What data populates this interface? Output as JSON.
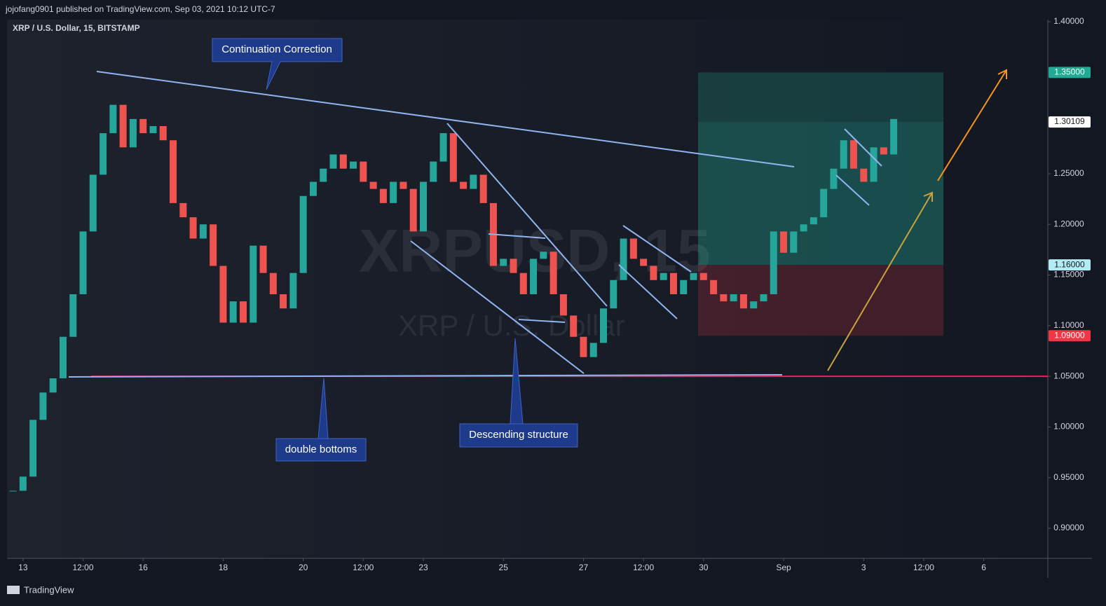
{
  "header": "jojofang0901 published on TradingView.com, Sep 03, 2021 10:12 UTC-7",
  "footer": "TradingView",
  "chart_data": {
    "type": "candlestick",
    "title": "XRP / U.S. Dollar, 15, BITSTAMP",
    "watermark": [
      "XRPUSD, 15",
      "XRP / U.S. Dollar"
    ],
    "annotations": [
      "Continuation Correction",
      "double bottoms",
      "Descending structure"
    ],
    "xlim": [
      -0.4,
      25.6
    ],
    "xticks": [
      {
        "value": 0,
        "label": "13"
      },
      {
        "value": 1.5,
        "label": "12:00"
      },
      {
        "value": 3,
        "label": "16"
      },
      {
        "value": 5,
        "label": "18"
      },
      {
        "value": 7,
        "label": "20"
      },
      {
        "value": 8.5,
        "label": "12:00"
      },
      {
        "value": 10,
        "label": "23"
      },
      {
        "value": 12,
        "label": "25"
      },
      {
        "value": 14,
        "label": "27"
      },
      {
        "value": 15.5,
        "label": "12:00"
      },
      {
        "value": 17,
        "label": "30"
      },
      {
        "value": 19,
        "label": "Sep"
      },
      {
        "value": 21,
        "label": "3"
      },
      {
        "value": 22.5,
        "label": "12:00"
      },
      {
        "value": 24,
        "label": "6"
      }
    ],
    "ylim": [
      0.8703,
      1.4021
    ],
    "yticks": [
      {
        "value": 1.4,
        "label": "1.40000"
      },
      {
        "value": 1.25,
        "label": "1.25000"
      },
      {
        "value": 1.2,
        "label": "1.20000"
      },
      {
        "value": 1.15,
        "label": "1.15000"
      },
      {
        "value": 1.1,
        "label": "1.10000"
      },
      {
        "value": 1.05,
        "label": "1.05000"
      },
      {
        "value": 1.0,
        "label": "1.00000"
      },
      {
        "value": 0.95,
        "label": "0.95000"
      },
      {
        "value": 0.9,
        "label": "0.90000"
      }
    ],
    "price_labels": [
      {
        "value": 1.35,
        "label": "1.35000",
        "color": "#22ab94",
        "text_color": "#ffffff"
      },
      {
        "value": 1.30109,
        "label": "1.30109",
        "color": "#ffffff",
        "text_color": "#131722"
      },
      {
        "value": 1.16,
        "label": "1.16000",
        "color": "#b2ebf2",
        "text_color": "#131722"
      },
      {
        "value": 1.09,
        "label": "1.09000",
        "color": "#f23645",
        "text_color": "#ffffff"
      }
    ],
    "support_line": {
      "value": 1.05,
      "color": "#e91e63"
    },
    "up_color": "#26a69a",
    "down_color": "#ef5350",
    "x": [
      -0.25,
      0,
      0.25,
      0.5,
      0.75,
      1,
      1.25,
      1.5,
      1.75,
      2,
      2.25,
      2.5,
      2.75,
      3,
      3.25,
      3.5,
      3.75,
      4,
      4.25,
      4.5,
      4.75,
      5,
      5.25,
      5.5,
      5.75,
      6,
      6.25,
      6.5,
      6.75,
      7,
      7.25,
      7.5,
      7.75,
      8,
      8.25,
      8.5,
      8.75,
      9,
      9.25,
      9.5,
      9.75,
      10,
      10.25,
      10.5,
      10.75,
      11,
      11.25,
      11.5,
      11.75,
      12,
      12.25,
      12.5,
      12.75,
      13,
      13.25,
      13.5,
      13.75,
      14,
      14.25,
      14.5,
      14.75,
      15,
      15.25,
      15.5,
      15.75,
      16,
      16.25,
      16.5,
      16.75,
      17,
      17.25,
      17.5,
      17.75,
      18,
      18.25,
      18.5,
      18.75,
      19,
      19.25,
      19.5,
      19.75,
      20,
      20.25,
      20.5,
      20.75,
      21,
      21.25,
      21.5,
      21.75
    ],
    "series": [
      {
        "name": "XRPUSD",
        "values": [
          0.937,
          0.951,
          1.007,
          1.034,
          1.048,
          1.089,
          1.131,
          1.193,
          1.249,
          1.29,
          1.318,
          1.276,
          1.304,
          1.29,
          1.297,
          1.283,
          1.221,
          1.207,
          1.186,
          1.2,
          1.159,
          1.103,
          1.124,
          1.103,
          1.179,
          1.152,
          1.131,
          1.117,
          1.152,
          1.228,
          1.242,
          1.255,
          1.269,
          1.255,
          1.262,
          1.242,
          1.235,
          1.221,
          1.242,
          1.235,
          1.193,
          1.242,
          1.262,
          1.29,
          1.242,
          1.235,
          1.249,
          1.221,
          1.159,
          1.166,
          1.152,
          1.131,
          1.166,
          1.173,
          1.131,
          1.11,
          1.089,
          1.069,
          1.083,
          1.117,
          1.145,
          1.186,
          1.166,
          1.159,
          1.145,
          1.152,
          1.131,
          1.145,
          1.152,
          1.145,
          1.131,
          1.124,
          1.131,
          1.117,
          1.124,
          1.131,
          1.193,
          1.172,
          1.193,
          1.2,
          1.207,
          1.235,
          1.255,
          1.283,
          1.255,
          1.242,
          1.276,
          1.269,
          1.304
        ]
      }
    ]
  }
}
